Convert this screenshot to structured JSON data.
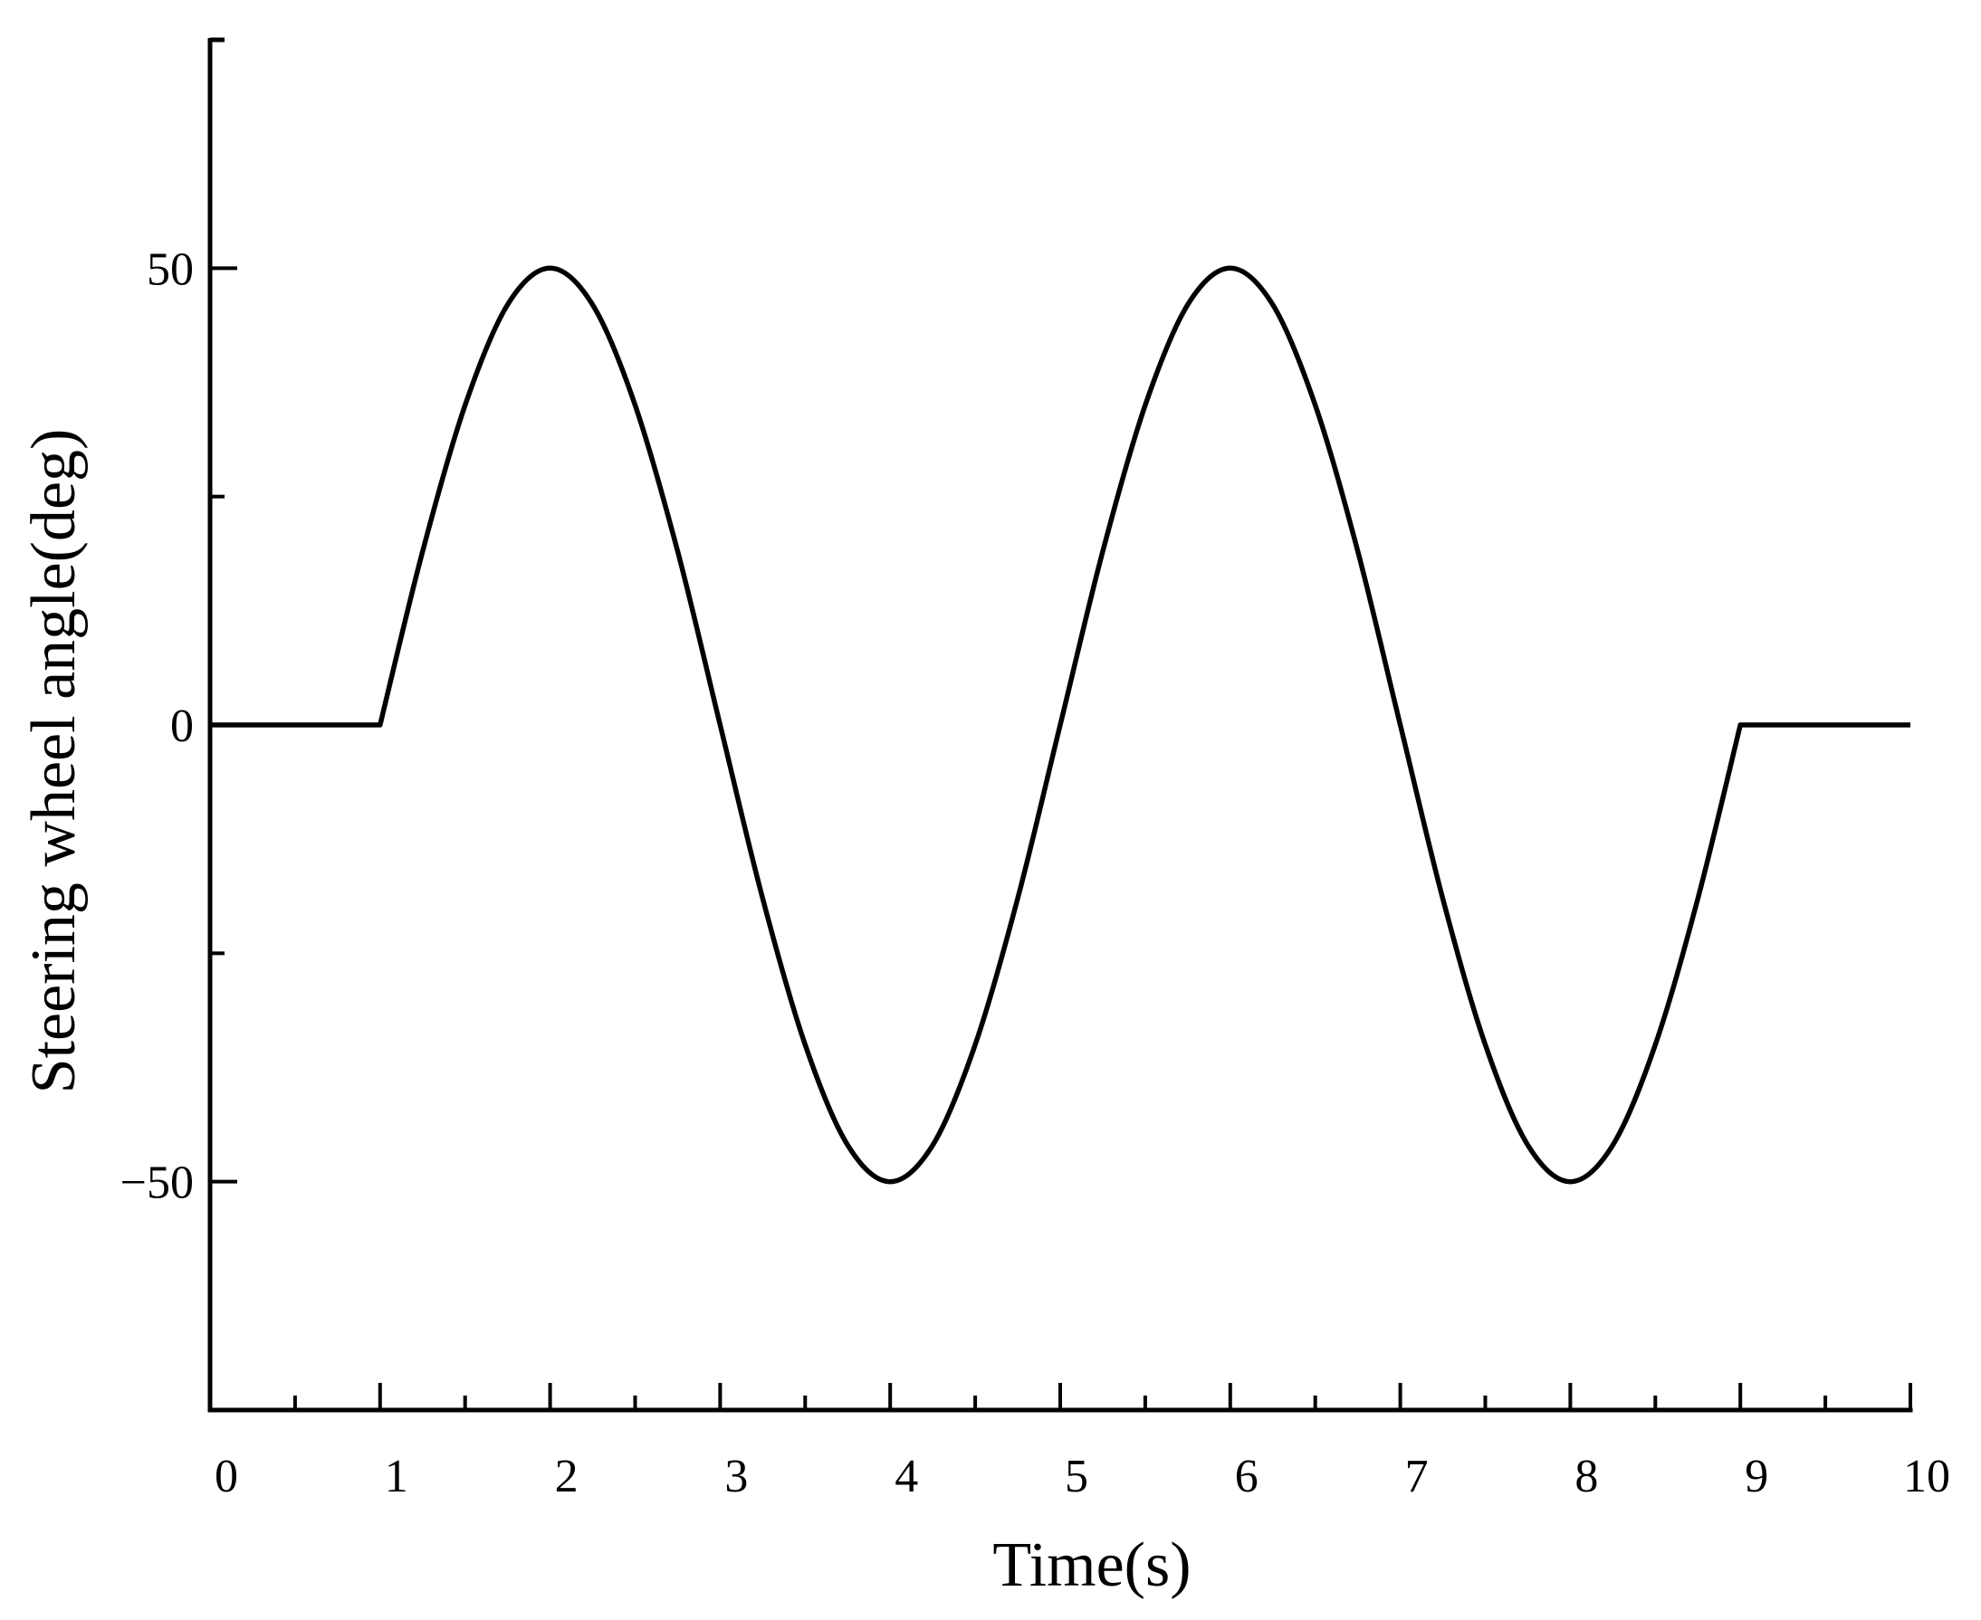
{
  "chart_data": {
    "type": "line",
    "title": "",
    "xlabel": "Time(s)",
    "ylabel": "Steering wheel angle(deg)",
    "xlim": [
      0,
      10
    ],
    "ylim": [
      -75,
      75
    ],
    "x_major_ticks": [
      0,
      1,
      2,
      3,
      4,
      5,
      6,
      7,
      8,
      9,
      10
    ],
    "x_tick_labels": [
      "0",
      "1",
      "2",
      "3",
      "4",
      "5",
      "6",
      "7",
      "8",
      "9",
      "10"
    ],
    "x_minor_ticks": [
      0.5,
      1.5,
      2.5,
      3.5,
      4.5,
      5.5,
      6.5,
      7.5,
      8.5,
      9.5
    ],
    "y_major_ticks": [
      -50,
      0,
      50
    ],
    "y_tick_labels": [
      "−50",
      "0",
      "50"
    ],
    "y_minor_ticks": [
      -25,
      25
    ],
    "grid": false,
    "legend": "none",
    "line_color": "#000000",
    "series": [
      {
        "x": [
          0,
          1,
          1.25,
          1.5,
          1.75,
          2,
          2.25,
          2.5,
          2.75,
          3,
          3.25,
          3.5,
          3.75,
          4,
          4.25,
          4.5,
          4.75,
          5,
          5.25,
          5.5,
          5.75,
          6,
          6.25,
          6.5,
          6.75,
          7,
          7.25,
          7.5,
          7.75,
          8,
          8.25,
          8.5,
          8.75,
          9,
          10
        ],
        "y": [
          0,
          0,
          19,
          35,
          46,
          50,
          46,
          35,
          19,
          0,
          -19,
          -35,
          -46,
          -50,
          -46,
          -35,
          -19,
          0,
          19,
          35,
          46,
          50,
          46,
          35,
          19,
          0,
          -19,
          -35,
          -46,
          -50,
          -46,
          -35,
          -19,
          0,
          0
        ]
      }
    ]
  }
}
